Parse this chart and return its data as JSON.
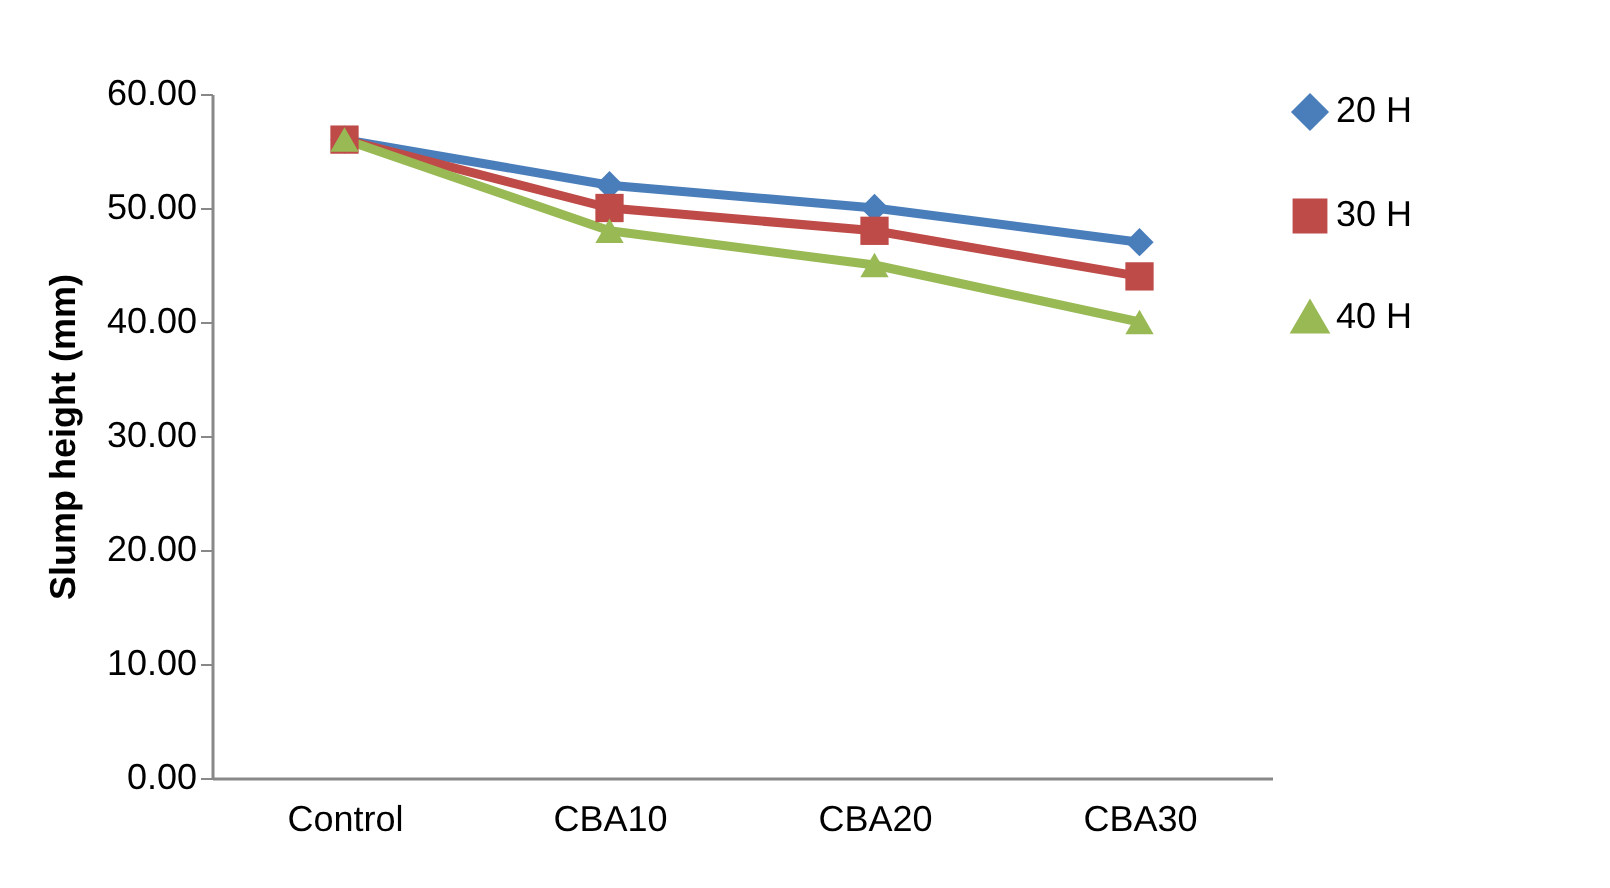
{
  "chart_data": {
    "type": "line",
    "ylabel": "Slump height (mm)",
    "categories": [
      "Control",
      "CBA10",
      "CBA20",
      "CBA30"
    ],
    "series": [
      {
        "name": "20 H",
        "color": "#4a7ebb",
        "marker": "diamond",
        "values": [
          56,
          52,
          50,
          47
        ]
      },
      {
        "name": "30 H",
        "color": "#be4b48",
        "marker": "square",
        "values": [
          56,
          50,
          48,
          44
        ]
      },
      {
        "name": "40 H",
        "color": "#98b954",
        "marker": "triangle",
        "values": [
          56,
          48,
          45,
          40
        ]
      }
    ],
    "ylim": [
      0,
      60
    ],
    "yticks": [
      {
        "value": 0,
        "label": "0.00"
      },
      {
        "value": 10,
        "label": "10.00"
      },
      {
        "value": 20,
        "label": "20.00"
      },
      {
        "value": 30,
        "label": "30.00"
      },
      {
        "value": 40,
        "label": "40.00"
      },
      {
        "value": 50,
        "label": "50.00"
      },
      {
        "value": 60,
        "label": "60.00"
      }
    ],
    "grid": false,
    "legend": "right"
  }
}
